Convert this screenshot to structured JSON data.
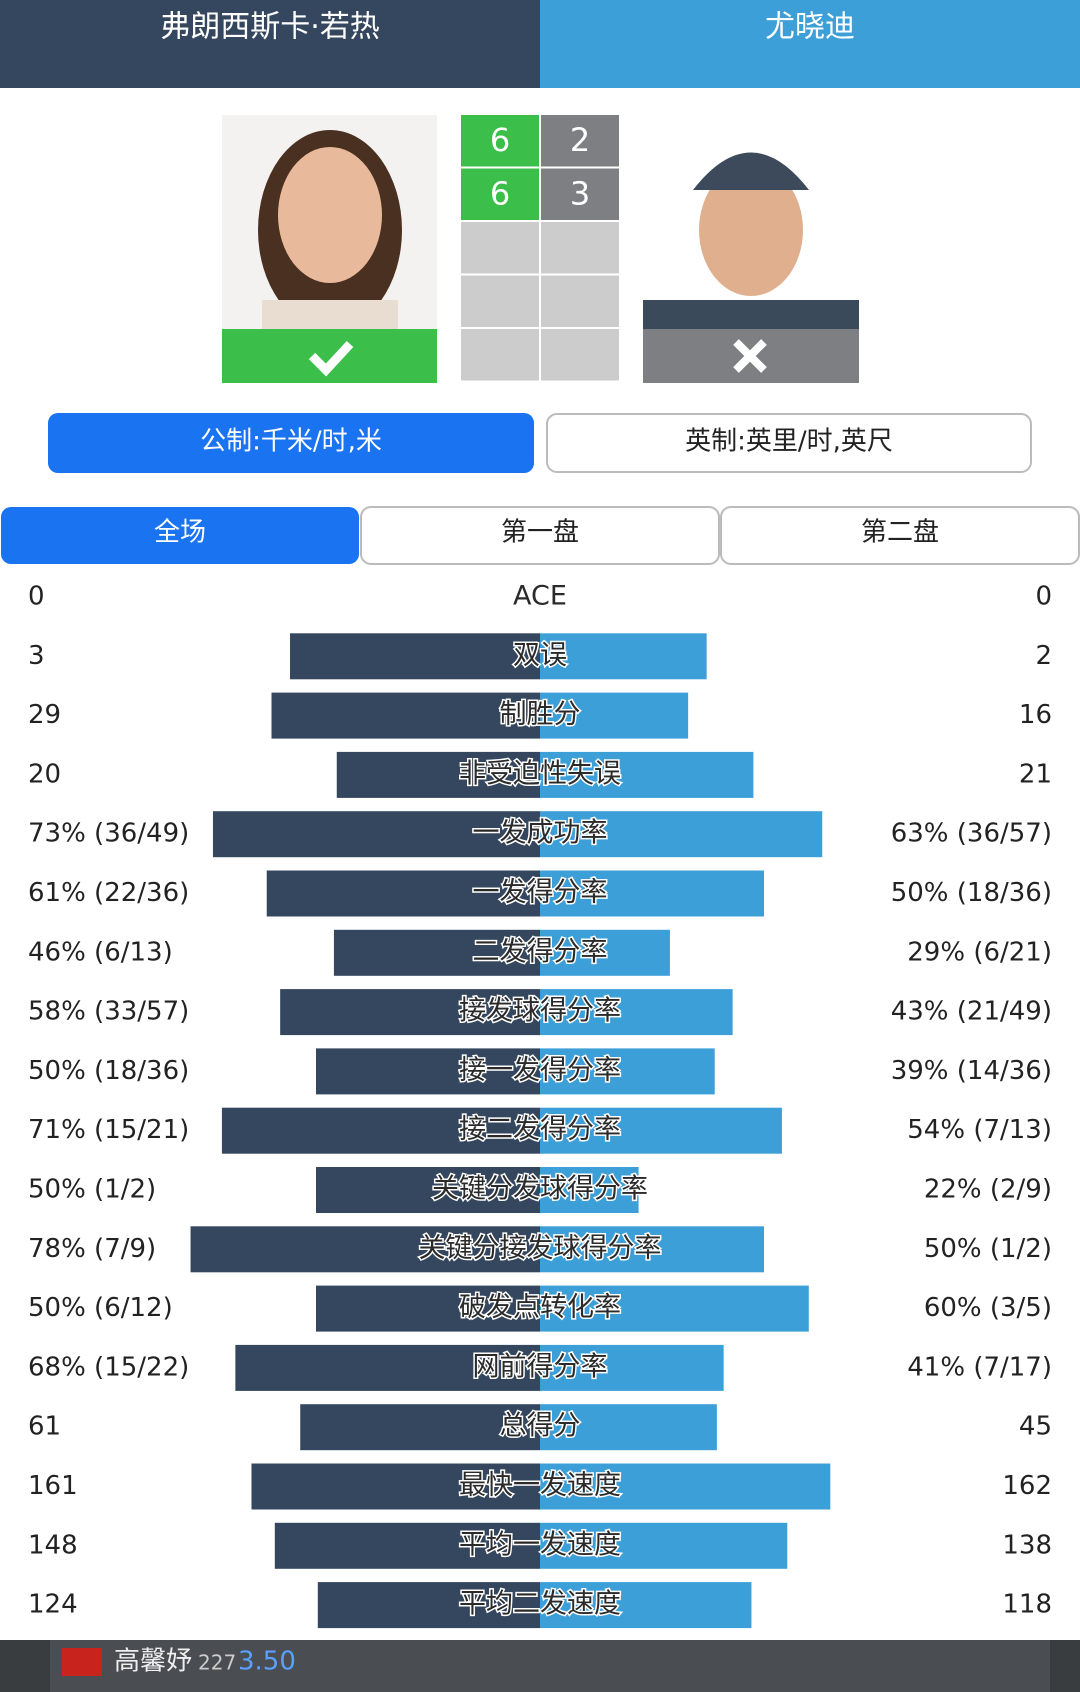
{
  "header": {
    "player1": "弗朗西斯卡·若热",
    "player2": "尤晓迪"
  },
  "sets": [
    {
      "p1": 6,
      "p2": 2
    },
    {
      "p1": 6,
      "p2": 3
    }
  ],
  "units": {
    "metric": "公制:千米/时,米",
    "imperial": "英制:英里/时,英尺"
  },
  "tabs": [
    "全场",
    "第一盘",
    "第二盘"
  ],
  "stats": [
    {
      "label": "ACE",
      "left": 0,
      "right": 0
    },
    {
      "label": "双误",
      "left": 3,
      "right": 2
    },
    {
      "label": "制胜分",
      "left": 29,
      "right": 16
    },
    {
      "label": "非受迫性失误",
      "left": 20,
      "right": 21
    },
    {
      "label": "一发成功率",
      "left": 73,
      "left_label": "73% (36/49)",
      "right": 63,
      "right_label": "63% (36/57)"
    },
    {
      "label": "一发得分率",
      "left": 61,
      "left_label": "61% (22/36)",
      "right": 50,
      "right_label": "50% (18/36)"
    },
    {
      "label": "二发得分率",
      "left": 46,
      "left_label": "46% (6/13)",
      "right": 29,
      "right_label": "29% (6/21)"
    },
    {
      "label": "接发球得分率",
      "left": 58,
      "left_label": "58% (33/57)",
      "right": 43,
      "right_label": "43% (21/49)"
    },
    {
      "label": "接一发得分率",
      "left": 50,
      "left_label": "50% (18/36)",
      "right": 39,
      "right_label": "39% (14/36)"
    },
    {
      "label": "接二发得分率",
      "left": 71,
      "left_label": "71% (15/21)",
      "right": 54,
      "right_label": "54% (7/13)"
    },
    {
      "label": "关键分发球得分率",
      "left": 50,
      "left_label": "50% (1/2)",
      "right": 22,
      "right_label": "22% (2/9)"
    },
    {
      "label": "关键分接发球得分率",
      "left": 78,
      "left_label": "78% (7/9)",
      "right": 50,
      "right_label": "50% (1/2)"
    },
    {
      "label": "破发点转化率",
      "left": 50,
      "left_label": "50% (6/12)",
      "right": 60,
      "right_label": "60% (3/5)"
    },
    {
      "label": "网前得分率",
      "left": 68,
      "left_label": "68% (15/22)",
      "right": 41,
      "right_label": "41% (7/17)"
    },
    {
      "label": "总得分",
      "left": 61,
      "right": 45
    },
    {
      "label": "最快一发速度",
      "left": 161,
      "right": 162
    },
    {
      "label": "平均一发速度",
      "left": 148,
      "right": 138
    },
    {
      "label": "平均二发速度",
      "left": 124,
      "right": 118
    }
  ],
  "ticker": {
    "name": "高馨妤",
    "rank": "227",
    "odds": "3.50"
  }
}
